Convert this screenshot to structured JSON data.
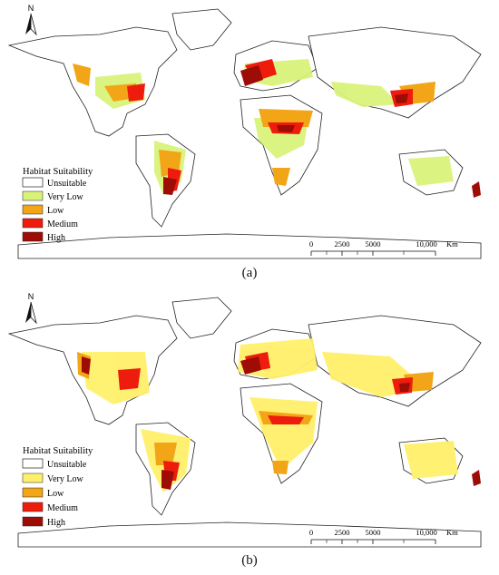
{
  "north_letter": "N",
  "legend": {
    "title": "Habitat Suitability",
    "classes": [
      {
        "label": "Unsuitable",
        "color": "#ffffff"
      },
      {
        "label": "Very Low",
        "color_a": "#d9f27a",
        "color_b": "#fff06a"
      },
      {
        "label": "Low",
        "color": "#f2a516"
      },
      {
        "label": "Medium",
        "color": "#ee1c0c"
      },
      {
        "label": "High",
        "color": "#9e0c06"
      }
    ]
  },
  "scale_bar": {
    "ticks": [
      "0",
      "2500",
      "5000",
      "10,000"
    ],
    "unit": "Km"
  },
  "panels": [
    {
      "caption": "(a)"
    },
    {
      "caption": "(b)"
    }
  ],
  "colors": {
    "very_low": "#fff06a",
    "low": "#f2a516",
    "medium": "#ee1c0c",
    "high": "#9e0c06",
    "outline": "#222222"
  }
}
